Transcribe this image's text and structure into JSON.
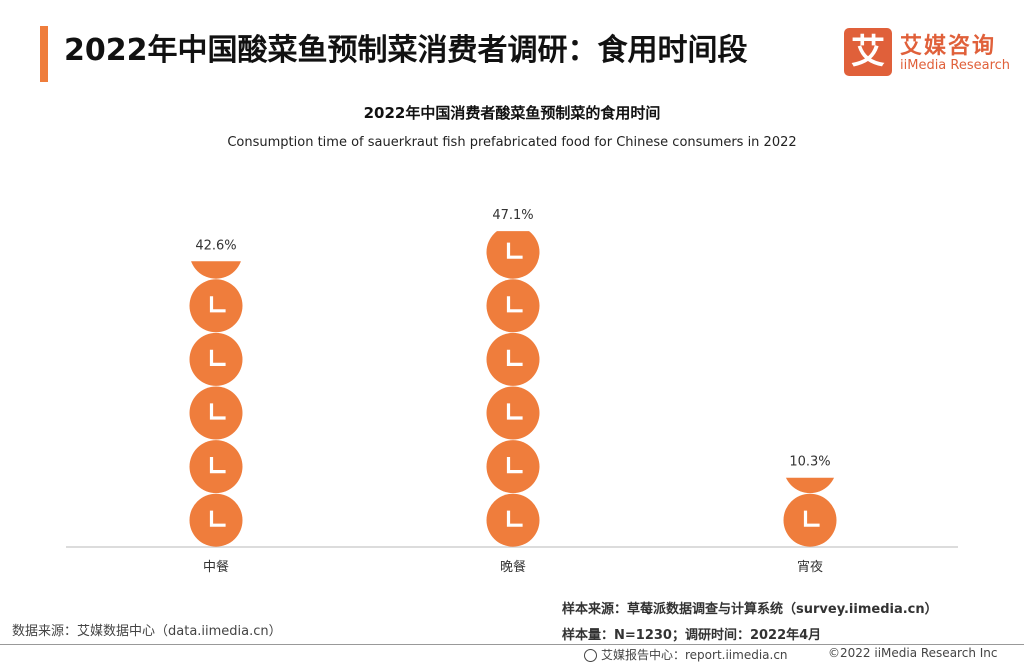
{
  "page": {
    "title": "2022年中国酸菜鱼预制菜消费者调研：食用时间段"
  },
  "logo": {
    "mark": "艾",
    "name_cn": "艾媒咨询",
    "name_en": "iiMedia Research"
  },
  "chart_data": {
    "type": "bar",
    "title": "2022年中国消费者酸菜鱼预制菜的食用时间",
    "subtitle": "Consumption time of sauerkraut fish prefabricated food for Chinese consumers in 2022",
    "categories": [
      "中餐",
      "晚餐",
      "宵夜"
    ],
    "values": [
      42.6,
      47.1,
      10.3
    ],
    "value_labels": [
      "42.6%",
      "47.1%",
      "10.3%"
    ],
    "unit": "%",
    "icon": "clock-icon",
    "bar_style": "stacked clock icons",
    "grid": false,
    "legend": "none"
  },
  "colors": {
    "accent": "#ef7d3c",
    "brand": "#e0603a",
    "icon_fill": "#ef7d3c",
    "icon_mark": "#ffffff"
  },
  "footer": {
    "data_source": "数据来源：艾媒数据中心（data.iimedia.cn）",
    "sample_source": "样本来源：草莓派数据调查与计算系统（survey.iimedia.cn）",
    "sample_size": "样本量：N=1230；调研时间：2022年4月",
    "report_center": "艾媒报告中心：report.iimedia.cn",
    "copyright": "©2022  iiMedia Research Inc"
  }
}
